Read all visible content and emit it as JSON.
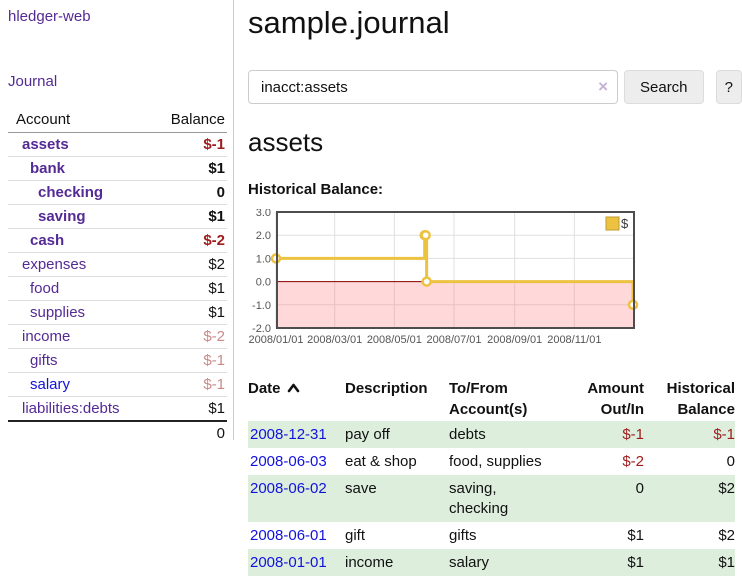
{
  "colors": {
    "link_purple": "#542a95",
    "link_blue": "#1212dd",
    "negative_strong": "#9d1c1c",
    "negative_soft": "#c98a8a",
    "row_green": "#ddeedd"
  },
  "sidebar": {
    "brand": "hledger-web",
    "journal_link": "Journal",
    "accounts": {
      "headers": [
        "Account",
        "Balance"
      ],
      "rows": [
        {
          "name": "assets",
          "balance": "$-1",
          "depth": 1,
          "bold": true,
          "balance_class": "neg-strong",
          "link_class": "plink"
        },
        {
          "name": "bank",
          "balance": "$1",
          "depth": 2,
          "bold": true,
          "balance_class": "",
          "link_class": "plink"
        },
        {
          "name": "checking",
          "balance": "0",
          "depth": 3,
          "bold": true,
          "balance_class": "",
          "link_class": "plink"
        },
        {
          "name": "saving",
          "balance": "$1",
          "depth": 3,
          "bold": true,
          "balance_class": "",
          "link_class": "plink"
        },
        {
          "name": "cash",
          "balance": "$-2",
          "depth": 2,
          "bold": true,
          "balance_class": "neg-strong",
          "link_class": "plink"
        },
        {
          "name": "expenses",
          "balance": "$2",
          "depth": 1,
          "bold": false,
          "balance_class": "",
          "link_class": "plink"
        },
        {
          "name": "food",
          "balance": "$1",
          "depth": 2,
          "bold": false,
          "balance_class": "",
          "link_class": "plink"
        },
        {
          "name": "supplies",
          "balance": "$1",
          "depth": 2,
          "bold": false,
          "balance_class": "",
          "link_class": "plink"
        },
        {
          "name": "income",
          "balance": "$-2",
          "depth": 1,
          "bold": false,
          "balance_class": "neg-soft",
          "link_class": "plink"
        },
        {
          "name": "gifts",
          "balance": "$-1",
          "depth": 2,
          "bold": false,
          "balance_class": "neg-soft",
          "link_class": "plink"
        },
        {
          "name": "salary",
          "balance": "$-1",
          "depth": 2,
          "bold": false,
          "balance_class": "neg-soft",
          "link_class": "blink"
        },
        {
          "name": "liabilities:debts",
          "balance": "$1",
          "depth": 1,
          "bold": false,
          "balance_class": "",
          "link_class": "plink"
        }
      ],
      "total": "0"
    }
  },
  "main": {
    "title": "sample.journal",
    "search": {
      "value": "inacct:assets",
      "clear_icon": "×",
      "button_label": "Search",
      "help_label": "?"
    },
    "account_heading": "assets",
    "chart_label": "Historical Balance:"
  },
  "chart_data": {
    "type": "line",
    "step": true,
    "title": "Historical Balance",
    "legend": "$",
    "legend_position": "top-right",
    "grid": true,
    "x_range": [
      "2008-01-01",
      "2009-01-01"
    ],
    "ylim": [
      -2,
      3
    ],
    "y_ticks": [
      {
        "v": 3,
        "label": "3.0"
      },
      {
        "v": 2,
        "label": "2.0"
      },
      {
        "v": 1,
        "label": "1.0"
      },
      {
        "v": 0,
        "label": "0.0"
      },
      {
        "v": -1,
        "label": "-1.0"
      },
      {
        "v": -2,
        "label": "-2.0"
      }
    ],
    "x_ticks": [
      {
        "date": "2008-01-01",
        "label": "2008/01/01"
      },
      {
        "date": "2008-03-01",
        "label": "2008/03/01"
      },
      {
        "date": "2008-05-01",
        "label": "2008/05/01"
      },
      {
        "date": "2008-07-01",
        "label": "2008/07/01"
      },
      {
        "date": "2008-09-01",
        "label": "2008/09/01"
      },
      {
        "date": "2008-11-01",
        "label": "2008/11/01"
      }
    ],
    "series": [
      {
        "name": "$",
        "color": "#edc240",
        "marker_fill": "#ffffff",
        "points": [
          [
            "2008-01-01",
            1
          ],
          [
            "2008-06-01",
            2
          ],
          [
            "2008-06-02",
            2
          ],
          [
            "2008-06-03",
            0
          ],
          [
            "2008-12-31",
            -1
          ]
        ]
      }
    ],
    "negative_region_color": "rgba(255,110,110,0.26)",
    "zero_line_color": "#8b0000",
    "grid_color": "#e0e0e0",
    "border_color": "#4d4d4d",
    "tick_label_color": "#555555"
  },
  "register": {
    "headers": [
      "Date",
      "Description",
      "To/From Account(s)",
      "Amount Out/In",
      "Historical Balance"
    ],
    "rows": [
      {
        "date": "2008-12-31",
        "description": "pay off",
        "accounts": "debts",
        "amount": "$-1",
        "balance": "$-1",
        "amount_class": "neg-strong",
        "balance_class": "neg-strong"
      },
      {
        "date": "2008-06-03",
        "description": "eat & shop",
        "accounts": "food, supplies",
        "amount": "$-2",
        "balance": "0",
        "amount_class": "neg-strong",
        "balance_class": ""
      },
      {
        "date": "2008-06-02",
        "description": "save",
        "accounts": "saving, checking",
        "amount": "0",
        "balance": "$2",
        "amount_class": "",
        "balance_class": ""
      },
      {
        "date": "2008-06-01",
        "description": "gift",
        "accounts": "gifts",
        "amount": "$1",
        "balance": "$2",
        "amount_class": "",
        "balance_class": ""
      },
      {
        "date": "2008-01-01",
        "description": "income",
        "accounts": "salary",
        "amount": "$1",
        "balance": "$1",
        "amount_class": "",
        "balance_class": ""
      }
    ]
  }
}
